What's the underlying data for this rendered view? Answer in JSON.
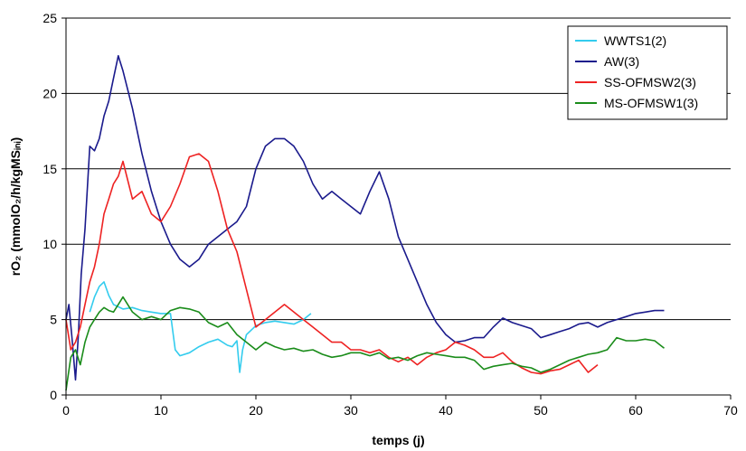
{
  "chart_data": {
    "type": "line",
    "xlabel": "temps (j)",
    "ylabel": "rO₂ (mmolO₂/h/kgMSᵢₙᵢ)",
    "xlim": [
      0,
      70
    ],
    "ylim": [
      0,
      25
    ],
    "xticks": [
      0,
      10,
      20,
      30,
      40,
      50,
      60,
      70
    ],
    "yticks": [
      0,
      5,
      10,
      15,
      20,
      25
    ],
    "grid": "horizontal",
    "legend_position": "top-right",
    "series": [
      {
        "name": "WWTS1(2)",
        "color": "#33ccee",
        "x": [
          2.5,
          3.0,
          3.5,
          4.0,
          4.5,
          5.0,
          6.0,
          7.0,
          8.0,
          9.0,
          10.0,
          11.0,
          11.5,
          12.0,
          13.0,
          14.0,
          15.0,
          16.0,
          17.0,
          17.5,
          18.0,
          18.3,
          18.6,
          19.0,
          20.0,
          21.0,
          22.0,
          23.0,
          24.0,
          25.0,
          25.8
        ],
        "y": [
          5.5,
          6.5,
          7.2,
          7.5,
          6.6,
          6.0,
          5.7,
          5.8,
          5.6,
          5.5,
          5.4,
          5.4,
          3.0,
          2.6,
          2.8,
          3.2,
          3.5,
          3.7,
          3.3,
          3.2,
          3.6,
          1.5,
          3.0,
          4.0,
          4.6,
          4.8,
          4.9,
          4.8,
          4.7,
          5.0,
          5.4
        ]
      },
      {
        "name": "AW(3)",
        "color": "#1a1a8c",
        "x": [
          0,
          0.3,
          0.6,
          1.0,
          1.3,
          1.6,
          2.0,
          2.5,
          3.0,
          3.5,
          4.0,
          4.5,
          5.0,
          5.5,
          6.0,
          7.0,
          8.0,
          9.0,
          10.0,
          11.0,
          12.0,
          13.0,
          14.0,
          15.0,
          16.0,
          17.0,
          18.0,
          19.0,
          20.0,
          21.0,
          22.0,
          23.0,
          24.0,
          25.0,
          26.0,
          27.0,
          28.0,
          29.0,
          30.0,
          31.0,
          32.0,
          33.0,
          34.0,
          35.0,
          36.0,
          37.0,
          38.0,
          39.0,
          40.0,
          41.0,
          42.0,
          43.0,
          44.0,
          45.0,
          46.0,
          47.0,
          48.0,
          49.0,
          50.0,
          51.0,
          52.0,
          53.0,
          54.0,
          55.0,
          56.0,
          57.0,
          58.0,
          59.0,
          60.0,
          61.0,
          62.0,
          63.0
        ],
        "y": [
          5.0,
          6.0,
          4.0,
          1.0,
          4.0,
          8.0,
          11.0,
          16.5,
          16.2,
          17.0,
          18.5,
          19.5,
          21.0,
          22.5,
          21.5,
          19.0,
          16.0,
          13.5,
          11.5,
          10.0,
          9.0,
          8.5,
          9.0,
          10.0,
          10.5,
          11.0,
          11.5,
          12.5,
          15.0,
          16.5,
          17.0,
          17.0,
          16.5,
          15.5,
          14.0,
          13.0,
          13.5,
          13.0,
          12.5,
          12.0,
          13.5,
          14.8,
          13.0,
          10.5,
          9.0,
          7.5,
          6.0,
          4.8,
          4.0,
          3.5,
          3.6,
          3.8,
          3.8,
          4.5,
          5.1,
          4.8,
          4.6,
          4.4,
          3.8,
          4.0,
          4.2,
          4.4,
          4.7,
          4.8,
          4.5,
          4.8,
          5.0,
          5.2,
          5.4,
          5.5,
          5.6,
          5.6
        ]
      },
      {
        "name": "SS-OFMSW2(3)",
        "color": "#ee2222",
        "x": [
          0,
          0.5,
          1.0,
          1.5,
          2.0,
          2.5,
          3.0,
          3.5,
          4.0,
          4.5,
          5.0,
          5.5,
          6.0,
          7.0,
          8.0,
          9.0,
          10.0,
          11.0,
          12.0,
          13.0,
          14.0,
          15.0,
          16.0,
          17.0,
          18.0,
          19.0,
          20.0,
          21.0,
          22.0,
          23.0,
          24.0,
          25.0,
          26.0,
          27.0,
          28.0,
          29.0,
          30.0,
          31.0,
          32.0,
          33.0,
          34.0,
          35.0,
          36.0,
          37.0,
          38.0,
          39.0,
          40.0,
          41.0,
          42.0,
          43.0,
          44.0,
          45.0,
          46.0,
          47.0,
          48.0,
          49.0,
          50.0,
          51.0,
          52.0,
          53.0,
          54.0,
          55.0,
          56.0
        ],
        "y": [
          5.0,
          3.0,
          3.5,
          4.5,
          6.0,
          7.5,
          8.5,
          10.0,
          12.0,
          13.0,
          14.0,
          14.5,
          15.5,
          13.0,
          13.5,
          12.0,
          11.5,
          12.5,
          14.0,
          15.8,
          16.0,
          15.5,
          13.5,
          11.0,
          9.5,
          7.0,
          4.5,
          5.0,
          5.5,
          6.0,
          5.5,
          5.0,
          4.5,
          4.0,
          3.5,
          3.5,
          3.0,
          3.0,
          2.8,
          3.0,
          2.5,
          2.2,
          2.5,
          2.0,
          2.5,
          2.8,
          3.0,
          3.5,
          3.3,
          3.0,
          2.5,
          2.5,
          2.8,
          2.2,
          1.8,
          1.5,
          1.4,
          1.6,
          1.7,
          2.0,
          2.3,
          1.5,
          2.0
        ]
      },
      {
        "name": "MS-OFMSW1(3)",
        "color": "#1a8c1a",
        "x": [
          0,
          0.5,
          1.0,
          1.5,
          2.0,
          2.5,
          3.0,
          3.5,
          4.0,
          4.5,
          5.0,
          5.5,
          6.0,
          7.0,
          8.0,
          9.0,
          10.0,
          11.0,
          12.0,
          13.0,
          14.0,
          15.0,
          16.0,
          17.0,
          18.0,
          19.0,
          20.0,
          21.0,
          22.0,
          23.0,
          24.0,
          25.0,
          26.0,
          27.0,
          28.0,
          29.0,
          30.0,
          31.0,
          32.0,
          33.0,
          34.0,
          35.0,
          36.0,
          37.0,
          38.0,
          39.0,
          40.0,
          41.0,
          42.0,
          43.0,
          44.0,
          45.0,
          46.0,
          47.0,
          48.0,
          49.0,
          50.0,
          51.0,
          52.0,
          53.0,
          54.0,
          55.0,
          56.0,
          57.0,
          58.0,
          59.0,
          60.0,
          61.0,
          62.0,
          63.0
        ],
        "y": [
          0.3,
          2.5,
          3.0,
          2.0,
          3.5,
          4.5,
          5.0,
          5.5,
          5.8,
          5.6,
          5.5,
          6.0,
          6.5,
          5.5,
          5.0,
          5.2,
          5.0,
          5.6,
          5.8,
          5.7,
          5.5,
          4.8,
          4.5,
          4.8,
          4.0,
          3.5,
          3.0,
          3.5,
          3.2,
          3.0,
          3.1,
          2.9,
          3.0,
          2.7,
          2.5,
          2.6,
          2.8,
          2.8,
          2.6,
          2.8,
          2.4,
          2.5,
          2.3,
          2.6,
          2.8,
          2.7,
          2.6,
          2.5,
          2.5,
          2.3,
          1.7,
          1.9,
          2.0,
          2.1,
          1.9,
          1.8,
          1.5,
          1.7,
          2.0,
          2.3,
          2.5,
          2.7,
          2.8,
          3.0,
          3.8,
          3.6,
          3.6,
          3.7,
          3.6,
          3.1
        ]
      }
    ]
  }
}
